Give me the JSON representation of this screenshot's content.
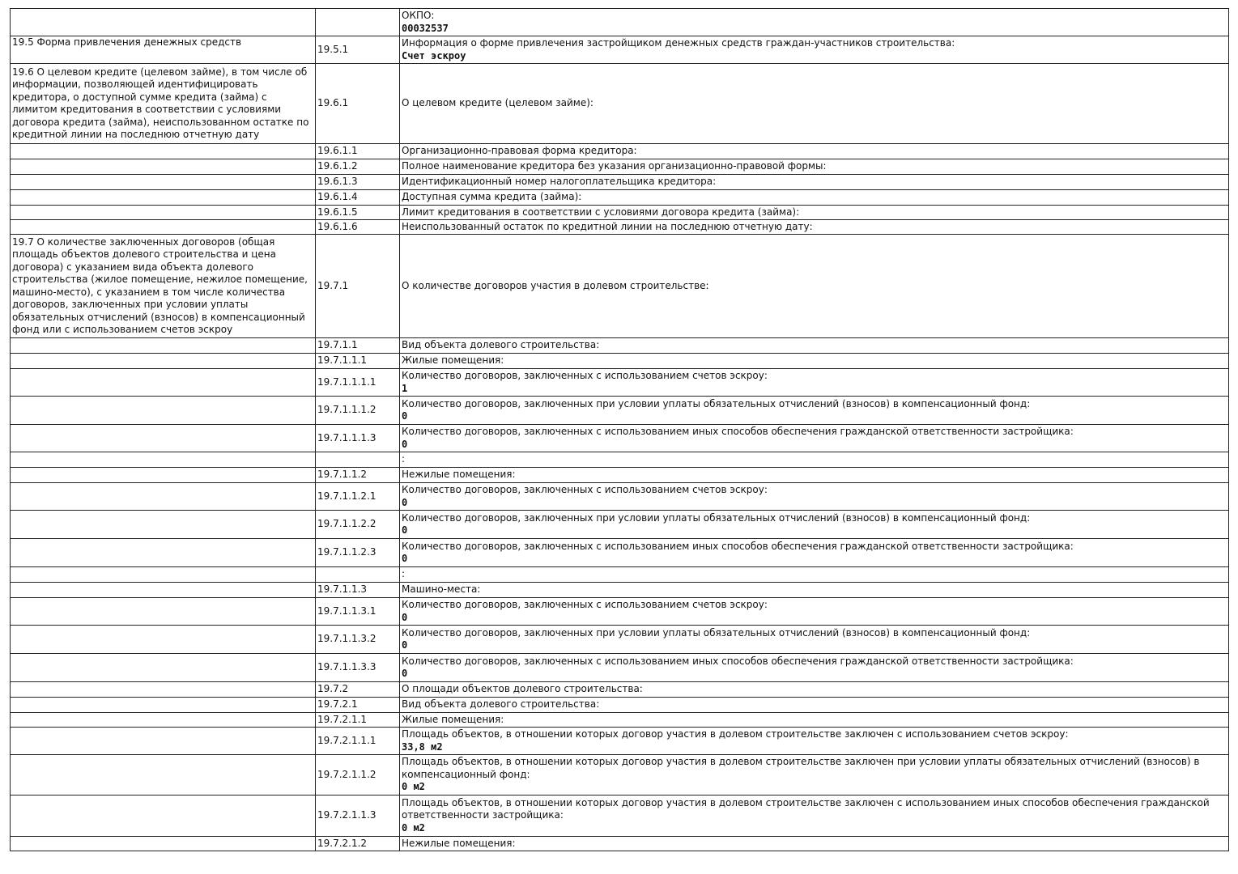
{
  "rows": [
    {
      "c1": "",
      "c2": "",
      "c3": "ОКПО:",
      "v": "00032537"
    },
    {
      "c1": "19.5 Форма привлечения денежных средств",
      "c2": "19.5.1",
      "c3": "Информация о форме привлечения застройщиком денежных средств граждан-участников строительства:",
      "v": "Счет эскроу"
    },
    {
      "c1": "19.6 О целевом кредите (целевом займе), в том числе об информации, позволяющей идентифицировать кредитора, о доступной сумме кредита (займа) с лимитом кредитования в соответствии с условиями договора кредита (займа), неиспользованном остатке по кредитной линии на последнюю отчетную дату",
      "c2": "19.6.1",
      "c3": "О целевом кредите (целевом займе):"
    },
    {
      "c1": "",
      "c2": "19.6.1.1",
      "c3": "Организационно-правовая форма кредитора:"
    },
    {
      "c1": "",
      "c2": "19.6.1.2",
      "c3": "Полное наименование кредитора без указания организационно-правовой формы:"
    },
    {
      "c1": "",
      "c2": "19.6.1.3",
      "c3": "Идентификационный номер налогоплательщика кредитора:"
    },
    {
      "c1": "",
      "c2": "19.6.1.4",
      "c3": "Доступная сумма кредита (займа):"
    },
    {
      "c1": "",
      "c2": "19.6.1.5",
      "c3": "Лимит кредитования в соответствии с условиями договора кредита (займа):"
    },
    {
      "c1": "",
      "c2": "19.6.1.6",
      "c3": "Неиспользованный остаток по кредитной линии на последнюю отчетную дату:"
    },
    {
      "c1": "19.7 О количестве заключенных договоров (общая площадь объектов долевого строительства и цена договора) с указанием вида объекта долевого строительства (жилое помещение, нежилое помещение, машино-место), с указанием в том числе количества договоров, заключенных при условии уплаты обязательных отчислений (взносов) в компенсационный фонд или с использованием счетов эскроу",
      "c2": "19.7.1",
      "c3": "О количестве договоров участия в долевом строительстве:"
    },
    {
      "c1": "",
      "c2": "19.7.1.1",
      "c3": "Вид объекта долевого строительства:"
    },
    {
      "c1": "",
      "c2": "19.7.1.1.1",
      "c3": "Жилые помещения:"
    },
    {
      "c1": "",
      "c2": "19.7.1.1.1.1",
      "c3": "Количество договоров, заключенных с использованием счетов эскроу:",
      "v": "1"
    },
    {
      "c1": "",
      "c2": "19.7.1.1.1.2",
      "c3": "Количество договоров, заключенных при условии уплаты обязательных отчислений (взносов) в компенсационный фонд:",
      "v": "0"
    },
    {
      "c1": "",
      "c2": "19.7.1.1.1.3",
      "c3": "Количество договоров, заключенных с использованием иных способов обеспечения гражданской ответственности застройщика:",
      "v": "0"
    },
    {
      "c1": "",
      "c2": "",
      "c3": ":"
    },
    {
      "c1": "",
      "c2": "19.7.1.1.2",
      "c3": "Нежилые помещения:"
    },
    {
      "c1": "",
      "c2": "19.7.1.1.2.1",
      "c3": "Количество договоров, заключенных с использованием счетов эскроу:",
      "v": "0"
    },
    {
      "c1": "",
      "c2": "19.7.1.1.2.2",
      "c3": "Количество договоров, заключенных при условии уплаты обязательных отчислений (взносов) в компенсационный фонд:",
      "v": "0"
    },
    {
      "c1": "",
      "c2": "19.7.1.1.2.3",
      "c3": "Количество договоров, заключенных с использованием иных способов обеспечения гражданской ответственности застройщика:",
      "v": "0"
    },
    {
      "c1": "",
      "c2": "",
      "c3": ":"
    },
    {
      "c1": "",
      "c2": "19.7.1.1.3",
      "c3": "Машино-места:"
    },
    {
      "c1": "",
      "c2": "19.7.1.1.3.1",
      "c3": "Количество договоров, заключенных с использованием счетов эскроу:",
      "v": "0"
    },
    {
      "c1": "",
      "c2": "19.7.1.1.3.2",
      "c3": "Количество договоров, заключенных при условии уплаты обязательных отчислений (взносов) в компенсационный фонд:",
      "v": "0"
    },
    {
      "c1": "",
      "c2": "19.7.1.1.3.3",
      "c3": "Количество договоров, заключенных с использованием иных способов обеспечения гражданской ответственности застройщика:",
      "v": "0"
    },
    {
      "c1": "",
      "c2": "19.7.2",
      "c3": "О площади объектов долевого строительства:"
    },
    {
      "c1": "",
      "c2": "19.7.2.1",
      "c3": "Вид объекта долевого строительства:"
    },
    {
      "c1": "",
      "c2": "19.7.2.1.1",
      "c3": "Жилые помещения:"
    },
    {
      "c1": "",
      "c2": "19.7.2.1.1.1",
      "c3": "Площадь объектов, в отношении которых договор участия в долевом строительстве заключен с использованием счетов эскроу:",
      "v": "33,8 м2"
    },
    {
      "c1": "",
      "c2": "19.7.2.1.1.2",
      "c3": "Площадь объектов, в отношении которых договор участия в долевом строительстве заключен при условии уплаты обязательных отчислений (взносов) в компенсационный фонд:",
      "v": "0 м2"
    },
    {
      "c1": "",
      "c2": "19.7.2.1.1.3",
      "c3": "Площадь объектов, в отношении которых договор участия в долевом строительстве заключен с использованием иных способов обеспечения гражданской ответственности застройщика:",
      "v": "0 м2"
    },
    {
      "c1": "",
      "c2": "19.7.2.1.2",
      "c3": "Нежилые помещения:"
    }
  ]
}
